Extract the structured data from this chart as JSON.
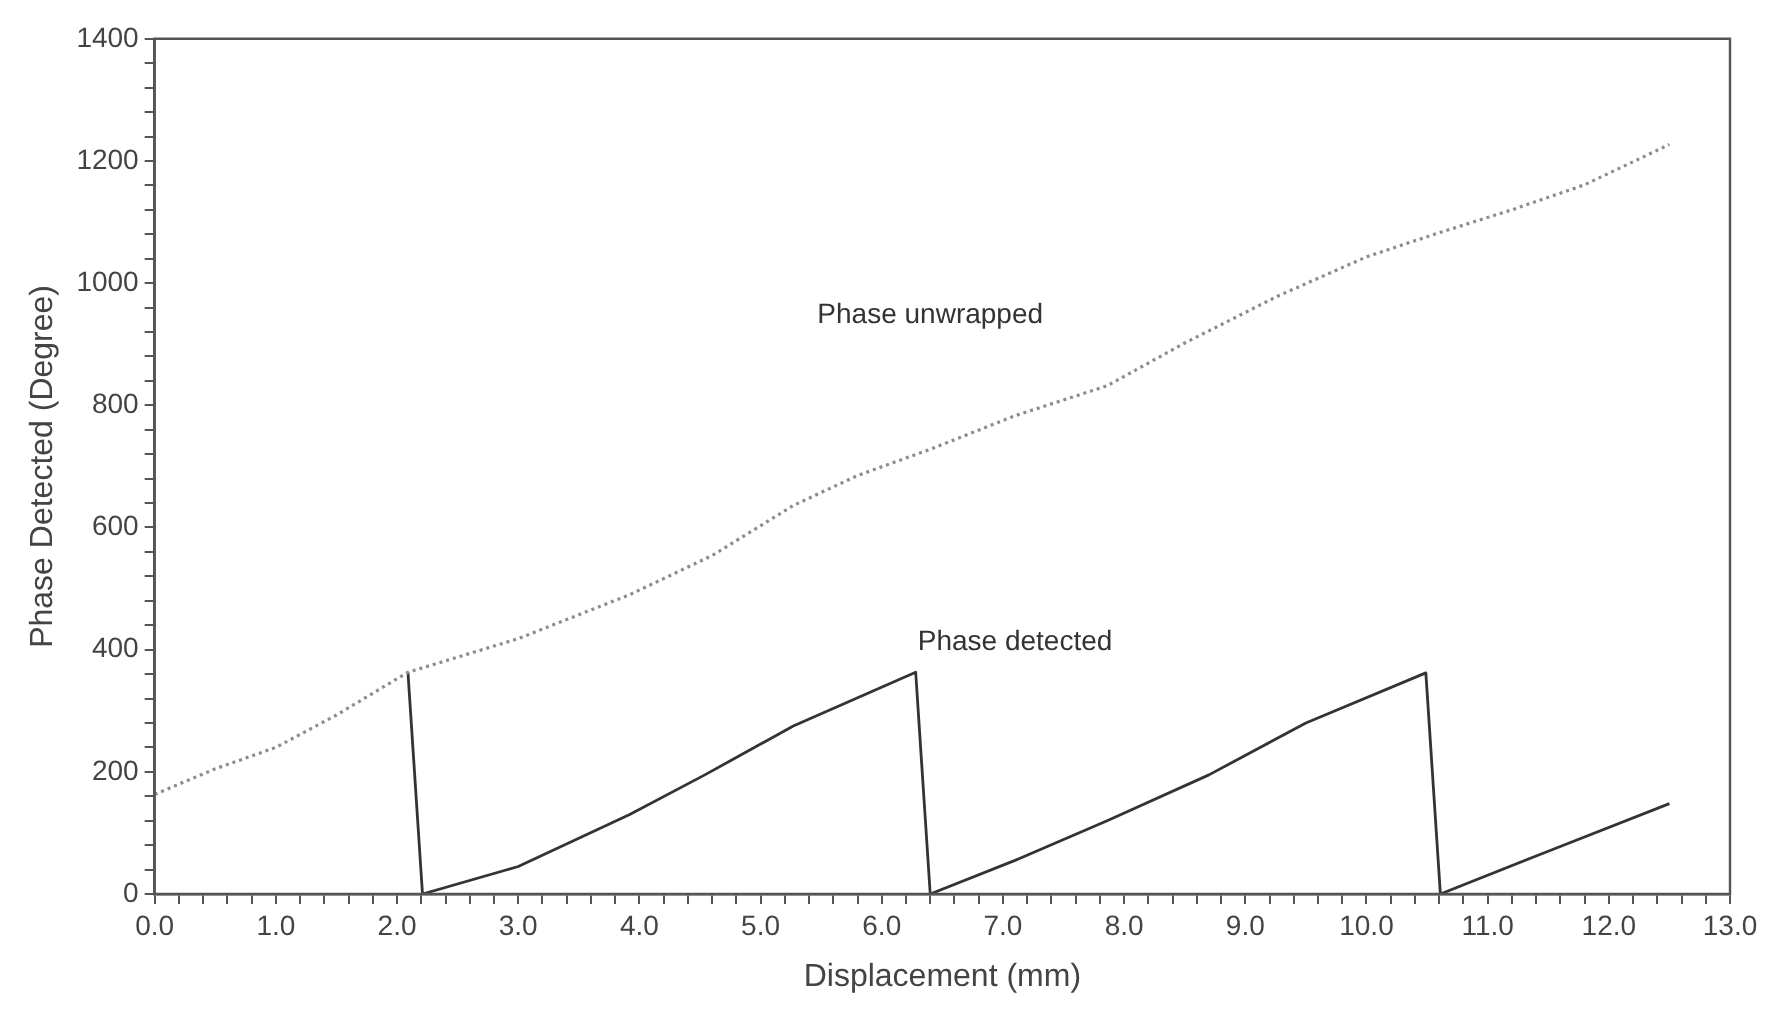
{
  "chart_data": {
    "type": "line",
    "xlabel": "Displacement (mm)",
    "ylabel": "Phase Detected (Degree)",
    "xlim": [
      0,
      13
    ],
    "ylim": [
      0,
      1400
    ],
    "xticks": [
      {
        "value": 0,
        "label": "0.0"
      },
      {
        "value": 0.2,
        "label": null
      },
      {
        "value": 0.4,
        "label": null
      },
      {
        "value": 0.6,
        "label": null
      },
      {
        "value": 0.8,
        "label": null
      },
      {
        "value": 1,
        "label": "1.0"
      },
      {
        "value": 1.2,
        "label": null
      },
      {
        "value": 1.4,
        "label": null
      },
      {
        "value": 1.6,
        "label": null
      },
      {
        "value": 1.8,
        "label": null
      },
      {
        "value": 2,
        "label": "2.0"
      },
      {
        "value": 2.2,
        "label": null
      },
      {
        "value": 2.4,
        "label": null
      },
      {
        "value": 2.6,
        "label": null
      },
      {
        "value": 2.8,
        "label": null
      },
      {
        "value": 3,
        "label": "3.0"
      },
      {
        "value": 3.2,
        "label": null
      },
      {
        "value": 3.4,
        "label": null
      },
      {
        "value": 3.6,
        "label": null
      },
      {
        "value": 3.8,
        "label": null
      },
      {
        "value": 4,
        "label": "4.0"
      },
      {
        "value": 4.2,
        "label": null
      },
      {
        "value": 4.4,
        "label": null
      },
      {
        "value": 4.6,
        "label": null
      },
      {
        "value": 4.8,
        "label": null
      },
      {
        "value": 5,
        "label": "5.0"
      },
      {
        "value": 5.2,
        "label": null
      },
      {
        "value": 5.4,
        "label": null
      },
      {
        "value": 5.6,
        "label": null
      },
      {
        "value": 5.8,
        "label": null
      },
      {
        "value": 6,
        "label": "6.0"
      },
      {
        "value": 6.2,
        "label": null
      },
      {
        "value": 6.4,
        "label": null
      },
      {
        "value": 6.6,
        "label": null
      },
      {
        "value": 6.8,
        "label": null
      },
      {
        "value": 7,
        "label": "7.0"
      },
      {
        "value": 7.2,
        "label": null
      },
      {
        "value": 7.4,
        "label": null
      },
      {
        "value": 7.6,
        "label": null
      },
      {
        "value": 7.8,
        "label": null
      },
      {
        "value": 8,
        "label": "8.0"
      },
      {
        "value": 8.2,
        "label": null
      },
      {
        "value": 8.4,
        "label": null
      },
      {
        "value": 8.6,
        "label": null
      },
      {
        "value": 8.8,
        "label": null
      },
      {
        "value": 9,
        "label": "9.0"
      },
      {
        "value": 9.2,
        "label": null
      },
      {
        "value": 9.4,
        "label": null
      },
      {
        "value": 9.6,
        "label": null
      },
      {
        "value": 9.8,
        "label": null
      },
      {
        "value": 10,
        "label": "10.0"
      },
      {
        "value": 10.2,
        "label": null
      },
      {
        "value": 10.4,
        "label": null
      },
      {
        "value": 10.6,
        "label": null
      },
      {
        "value": 10.8,
        "label": null
      },
      {
        "value": 11,
        "label": "11.0"
      },
      {
        "value": 11.2,
        "label": null
      },
      {
        "value": 11.4,
        "label": null
      },
      {
        "value": 11.6,
        "label": null
      },
      {
        "value": 11.8,
        "label": null
      },
      {
        "value": 12,
        "label": "12.0"
      },
      {
        "value": 12.2,
        "label": null
      },
      {
        "value": 12.4,
        "label": null
      },
      {
        "value": 12.6,
        "label": null
      },
      {
        "value": 12.8,
        "label": null
      },
      {
        "value": 13,
        "label": "13.0"
      }
    ],
    "yticks": [
      0,
      {
        "value": 40,
        "label": null
      },
      {
        "value": 80,
        "label": null
      },
      {
        "value": 120,
        "label": null
      },
      {
        "value": 160,
        "label": null
      },
      200,
      {
        "value": 240,
        "label": null
      },
      {
        "value": 280,
        "label": null
      },
      {
        "value": 320,
        "label": null
      },
      {
        "value": 360,
        "label": null
      },
      400,
      {
        "value": 440,
        "label": null
      },
      {
        "value": 480,
        "label": null
      },
      {
        "value": 520,
        "label": null
      },
      {
        "value": 560,
        "label": null
      },
      600,
      {
        "value": 640,
        "label": null
      },
      {
        "value": 680,
        "label": null
      },
      {
        "value": 720,
        "label": null
      },
      {
        "value": 760,
        "label": null
      },
      800,
      {
        "value": 840,
        "label": null
      },
      {
        "value": 880,
        "label": null
      },
      {
        "value": 920,
        "label": null
      },
      {
        "value": 960,
        "label": null
      },
      1000,
      {
        "value": 1040,
        "label": null
      },
      {
        "value": 1080,
        "label": null
      },
      {
        "value": 1120,
        "label": null
      },
      {
        "value": 1160,
        "label": null
      },
      1200,
      {
        "value": 1240,
        "label": null
      },
      {
        "value": 1280,
        "label": null
      },
      {
        "value": 1320,
        "label": null
      },
      {
        "value": 1360,
        "label": null
      },
      1400
    ],
    "grid": false,
    "legend": false,
    "marker": "none",
    "series": [
      {
        "name": "Phase unwrapped",
        "color": "#8c8c8c",
        "line_style": "dotted",
        "x": [
          0,
          0.5,
          1.0,
          1.5,
          2.09,
          3.0,
          3.92,
          4.6,
          5.27,
          5.8,
          6.4,
          7.1,
          7.86,
          8.5,
          9.27,
          10.0,
          10.56,
          11.2,
          11.8,
          12.5
        ],
        "values": [
          163,
          205,
          240,
          293,
          363,
          418,
          490,
          554,
          636,
          685,
          728,
          783,
          832,
          902,
          979,
          1043,
          1080,
          1120,
          1161,
          1227
        ]
      },
      {
        "name": "Phase detected",
        "color": "#333333",
        "line_style": "solid",
        "x": [
          2.09,
          2.21,
          3.0,
          3.92,
          4.54,
          5.27,
          6.28,
          6.4,
          7.1,
          7.86,
          8.7,
          9.5,
          10.49,
          10.61,
          11.5,
          12.5
        ],
        "values": [
          363,
          0,
          45,
          130,
          195,
          275,
          363,
          0,
          55,
          120,
          195,
          280,
          362,
          0,
          70,
          148
        ]
      }
    ]
  }
}
